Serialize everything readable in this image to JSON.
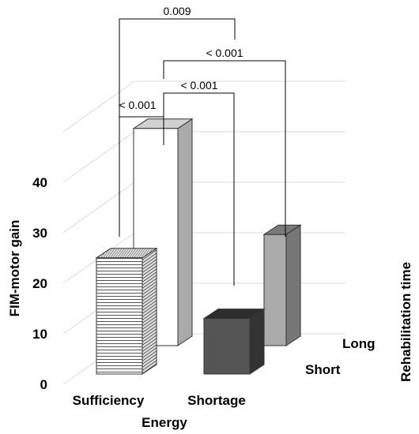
{
  "chart_data": {
    "type": "bar",
    "style": "3d",
    "ylabel": "FIM-motor gain",
    "xlabel": "Energy",
    "zlabel": "Rehabilitation time",
    "x_categories": [
      "Sufficiency",
      "Shortage"
    ],
    "z_categories": [
      "Long",
      "Short"
    ],
    "yticks": [
      0,
      10,
      20,
      30,
      40
    ],
    "ylim": [
      0,
      50
    ],
    "grid": true,
    "series": [
      {
        "energy": "Sufficiency",
        "time": "Short",
        "value": 23,
        "fill": "striped"
      },
      {
        "energy": "Sufficiency",
        "time": "Long",
        "value": 43,
        "fill": "#ffffff"
      },
      {
        "energy": "Shortage",
        "time": "Short",
        "value": 11,
        "fill": "#555555"
      },
      {
        "energy": "Shortage",
        "time": "Long",
        "value": 22,
        "fill": "#aaaaaa"
      }
    ],
    "comparisons": [
      {
        "label": "0.009"
      },
      {
        "label": "< 0.001"
      },
      {
        "label": "< 0.001"
      },
      {
        "label": "< 0.001"
      }
    ]
  }
}
